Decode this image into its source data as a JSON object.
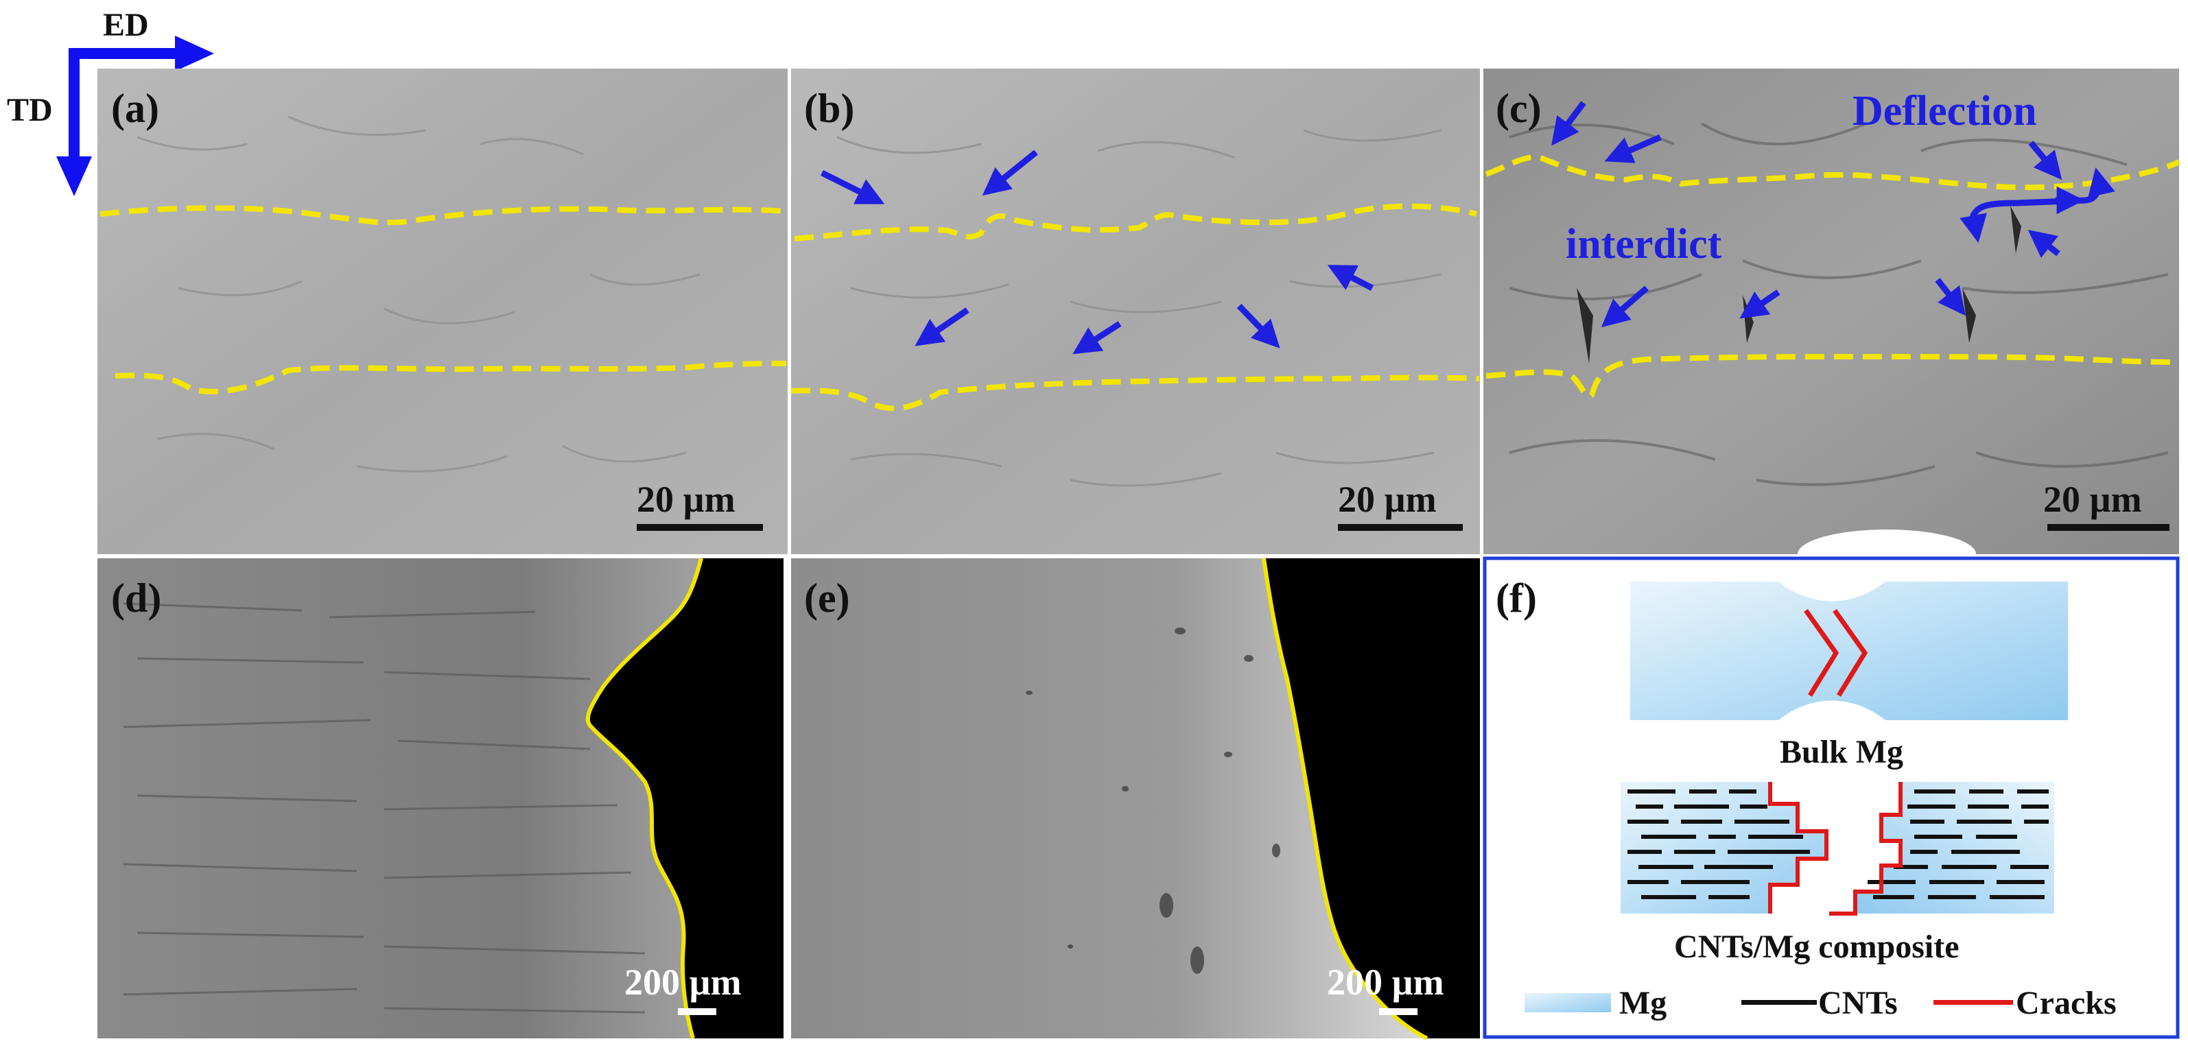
{
  "axes": {
    "horizontal": "ED",
    "vertical": "TD"
  },
  "panels": {
    "a": {
      "label": "(a)",
      "scale_bar": "20 µm"
    },
    "b": {
      "label": "(b)",
      "scale_bar": "20 µm"
    },
    "c": {
      "label": "(c)",
      "scale_bar": "20 µm",
      "annotation_deflection": "Deflection",
      "annotation_interdict": "interdict"
    },
    "d": {
      "label": "(d)",
      "scale_bar": "200 µm"
    },
    "e": {
      "label": "(e)",
      "scale_bar": "200 µm"
    },
    "f": {
      "label": "(f)",
      "caption_bulk": "Bulk Mg",
      "caption_composite": "CNTs/Mg composite"
    }
  },
  "legend": {
    "mg": "Mg",
    "cnts": "CNTs",
    "cracks": "Cracks"
  },
  "colors": {
    "boundary": "#f2e600",
    "arrow": "#1f1fe0",
    "crack": "#e01818",
    "cnt": "#111111",
    "frame_f": "#1f3fd8"
  }
}
